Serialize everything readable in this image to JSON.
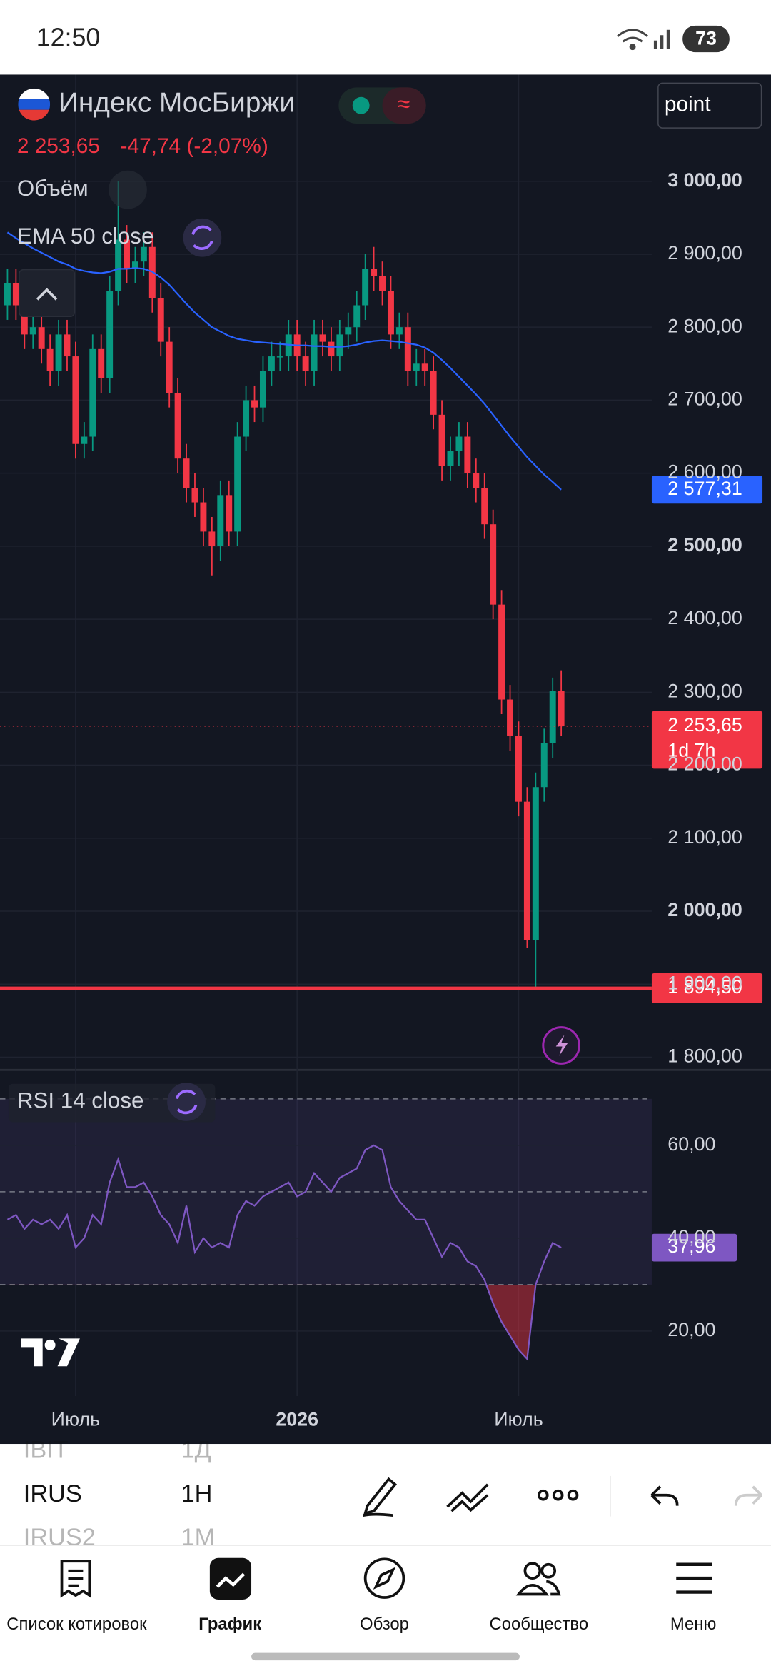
{
  "status_bar": {
    "time": "12:50",
    "battery": "73"
  },
  "header": {
    "change": "-47,74 (-2,07%)",
    "timeframe_button": "point"
  },
  "chart_data": [
    {
      "type": "candlestick",
      "title": "Индекс МосБиржи",
      "volume_label": "Объём",
      "categories": [
        null,
        null,
        null,
        null,
        null,
        null,
        null,
        null,
        "Июль",
        null,
        null,
        null,
        null,
        null,
        null,
        null,
        null,
        null,
        null,
        null,
        null,
        null,
        null,
        null,
        null,
        null,
        null,
        null,
        null,
        null,
        null,
        null,
        null,
        null,
        "2026",
        null,
        null,
        null,
        null,
        null,
        null,
        null,
        null,
        null,
        null,
        null,
        null,
        null,
        null,
        null,
        null,
        null,
        null,
        null,
        null,
        null,
        null,
        null,
        null,
        null,
        "Июль",
        null,
        null,
        null,
        null,
        null
      ],
      "open": [
        2830,
        2860,
        2830,
        2790,
        2800,
        2770,
        2740,
        2790,
        2760,
        2640,
        2650,
        2770,
        2730,
        2850,
        2920,
        2880,
        2890,
        2910,
        2840,
        2780,
        2710,
        2620,
        2580,
        2560,
        2520,
        2500,
        2570,
        2520,
        2650,
        2700,
        2690,
        2740,
        2760,
        2760,
        2790,
        2760,
        2740,
        2790,
        2780,
        2760,
        2790,
        2800,
        2830,
        2880,
        2870,
        2850,
        2790,
        2800,
        2740,
        2750,
        2740,
        2680,
        2610,
        2630,
        2650,
        2600,
        2580,
        2530,
        2420,
        2290,
        2240,
        2150,
        1960,
        2170,
        2230,
        2301.39
      ],
      "high": [
        2880,
        2880,
        2850,
        2820,
        2820,
        2790,
        2810,
        2810,
        2780,
        2670,
        2790,
        2790,
        2870,
        3000,
        2940,
        2910,
        2930,
        2930,
        2860,
        2800,
        2730,
        2640,
        2600,
        2580,
        2540,
        2590,
        2590,
        2670,
        2720,
        2720,
        2760,
        2780,
        2780,
        2810,
        2810,
        2780,
        2810,
        2810,
        2800,
        2810,
        2820,
        2850,
        2900,
        2910,
        2890,
        2870,
        2820,
        2820,
        2770,
        2770,
        2760,
        2700,
        2650,
        2670,
        2670,
        2620,
        2600,
        2550,
        2440,
        2310,
        2260,
        2170,
        2190,
        2250,
        2320,
        2330
      ],
      "low": [
        2810,
        2810,
        2770,
        2770,
        2750,
        2720,
        2720,
        2740,
        2620,
        2620,
        2630,
        2710,
        2710,
        2830,
        2860,
        2860,
        2870,
        2820,
        2760,
        2690,
        2600,
        2560,
        2540,
        2500,
        2460,
        2480,
        2500,
        2500,
        2630,
        2670,
        2670,
        2720,
        2740,
        2740,
        2740,
        2720,
        2720,
        2760,
        2740,
        2740,
        2770,
        2780,
        2810,
        2850,
        2830,
        2770,
        2770,
        2720,
        2720,
        2720,
        2660,
        2590,
        2590,
        2610,
        2580,
        2560,
        2510,
        2400,
        2270,
        2220,
        2130,
        1950,
        1894.5,
        2150,
        2210,
        2240
      ],
      "close": [
        2860,
        2830,
        2790,
        2800,
        2770,
        2740,
        2790,
        2760,
        2640,
        2650,
        2770,
        2730,
        2850,
        2920,
        2880,
        2890,
        2910,
        2840,
        2780,
        2710,
        2620,
        2580,
        2560,
        2520,
        2500,
        2570,
        2520,
        2650,
        2700,
        2690,
        2740,
        2760,
        2760,
        2790,
        2760,
        2740,
        2790,
        2780,
        2760,
        2790,
        2800,
        2830,
        2880,
        2870,
        2850,
        2790,
        2800,
        2740,
        2750,
        2740,
        2680,
        2610,
        2630,
        2650,
        2600,
        2580,
        2530,
        2420,
        2290,
        2240,
        2150,
        1960,
        2170,
        2230,
        2301.39,
        2253.65
      ],
      "up_color": "#089981",
      "down_color": "#f23645",
      "ema": {
        "name": "EMA 50 close",
        "color": "#2962ff",
        "values": [
          2930,
          2922,
          2915,
          2908,
          2902,
          2896,
          2890,
          2886,
          2880,
          2877,
          2875,
          2874,
          2876,
          2880,
          2880,
          2881,
          2880,
          2876,
          2868,
          2858,
          2845,
          2832,
          2820,
          2810,
          2800,
          2794,
          2788,
          2784,
          2782,
          2780,
          2779,
          2778,
          2777,
          2776,
          2775,
          2775,
          2774,
          2774,
          2773,
          2773,
          2774,
          2776,
          2779,
          2781,
          2782,
          2781,
          2780,
          2778,
          2776,
          2772,
          2765,
          2755,
          2744,
          2732,
          2720,
          2708,
          2695,
          2680,
          2665,
          2650,
          2636,
          2622,
          2610,
          2598,
          2588,
          2577.31
        ]
      },
      "ema_last": {
        "value": 2577.31,
        "label": "2 577,31"
      },
      "last_price": {
        "value": 2253.65,
        "label": "2 253,65",
        "countdown": "1d 7h"
      },
      "level": {
        "value": 1894.5,
        "label": "1 894,50"
      },
      "ylim": [
        1784,
        3146
      ],
      "yticks": [
        {
          "value": 1800,
          "label": "1 800,00"
        },
        {
          "value": 1900,
          "label": "1 900,00"
        },
        {
          "value": 2000,
          "label": "2 000,00"
        },
        {
          "value": 2100,
          "label": "2 100,00"
        },
        {
          "value": 2200,
          "label": "2 200,00"
        },
        {
          "value": 2300,
          "label": "2 300,00"
        },
        {
          "value": 2400,
          "label": "2 400,00"
        },
        {
          "value": 2500,
          "label": "2 500,00"
        },
        {
          "value": 2600,
          "label": "2 600,00"
        },
        {
          "value": 2700,
          "label": "2 700,00"
        },
        {
          "value": 2800,
          "label": "2 800,00"
        },
        {
          "value": 2900,
          "label": "2 900,00"
        },
        {
          "value": 3000,
          "label": "3 000,00"
        }
      ],
      "grid": true
    },
    {
      "type": "line",
      "title": "RSI 14 close",
      "color": "#7e57c2",
      "values": [
        44,
        45,
        42,
        44,
        43,
        44,
        42,
        45,
        38,
        40,
        45,
        43,
        52,
        57,
        51,
        51,
        52,
        49,
        45,
        43,
        39,
        47,
        37,
        40,
        38,
        39,
        38,
        45,
        48,
        47,
        49,
        50,
        51,
        52,
        49,
        50,
        54,
        52,
        50,
        53,
        54,
        55,
        59,
        60,
        59,
        51,
        48,
        46,
        44,
        44,
        40,
        36,
        39,
        38,
        35,
        34,
        31,
        26,
        22,
        19,
        16,
        14,
        30,
        35,
        39,
        37.96
      ],
      "last": {
        "value": 37.96,
        "label": "37,96"
      },
      "levels": [
        70,
        50,
        30
      ],
      "ylim": [
        6,
        76
      ],
      "yticks": [
        {
          "value": 60,
          "label": "60,00"
        },
        {
          "value": 40,
          "label": "40,00"
        },
        {
          "value": 20,
          "label": "20,00"
        }
      ],
      "grid": true
    }
  ],
  "toolbar": {
    "rows": [
      {
        "symbol": "IBIT",
        "interval": "1Д"
      },
      {
        "symbol": "IRUS",
        "interval": "1H"
      },
      {
        "symbol": "IRUS2",
        "interval": "1M"
      }
    ]
  },
  "nav": {
    "items": [
      "Список котировок",
      "График",
      "Обзор",
      "Сообщество",
      "Меню"
    ]
  }
}
